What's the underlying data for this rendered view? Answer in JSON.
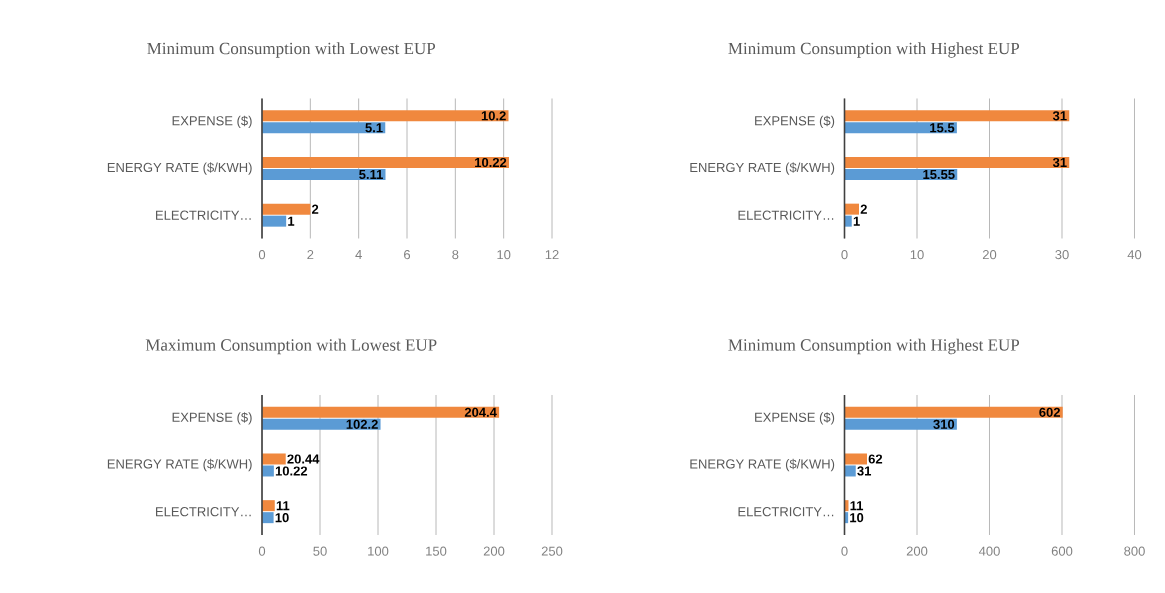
{
  "chart_data": [
    {
      "type": "bar",
      "orientation": "horizontal",
      "title": "Minimum Consumption  with Lowest EUP",
      "categories": [
        "EXPENSE ($)",
        "ENERGY RATE ($/KWH)",
        "ELECTRICITY…"
      ],
      "series": [
        {
          "color": "#f0883e",
          "values": [
            10.2,
            10.22,
            2
          ]
        },
        {
          "color": "#5b9bd5",
          "values": [
            5.1,
            5.11,
            1
          ]
        }
      ],
      "xlim": [
        0,
        12
      ],
      "xticks": [
        0,
        2,
        4,
        6,
        8,
        10,
        12
      ],
      "grid": "x",
      "data_labels": true
    },
    {
      "type": "bar",
      "orientation": "horizontal",
      "title": "Minimum Consumption  with Highest EUP",
      "categories": [
        "EXPENSE ($)",
        "ENERGY RATE ($/KWH)",
        "ELECTRICITY…"
      ],
      "series": [
        {
          "color": "#f0883e",
          "values": [
            31,
            31,
            2
          ]
        },
        {
          "color": "#5b9bd5",
          "values": [
            15.5,
            15.55,
            1
          ]
        }
      ],
      "xlim": [
        0,
        40
      ],
      "xticks": [
        0,
        10,
        20,
        30,
        40
      ],
      "grid": "x",
      "data_labels": true
    },
    {
      "type": "bar",
      "orientation": "horizontal",
      "title": "Maximum Consumption  with Lowest EUP",
      "categories": [
        "EXPENSE ($)",
        "ENERGY RATE ($/KWH)",
        "ELECTRICITY…"
      ],
      "series": [
        {
          "color": "#f0883e",
          "values": [
            204.4,
            20.44,
            11
          ]
        },
        {
          "color": "#5b9bd5",
          "values": [
            102.2,
            10.22,
            10
          ]
        }
      ],
      "xlim": [
        0,
        250
      ],
      "xticks": [
        0,
        50,
        100,
        150,
        200,
        250
      ],
      "grid": "x",
      "data_labels": true
    },
    {
      "type": "bar",
      "orientation": "horizontal",
      "title": "Minimum Consumption  with Highest EUP",
      "categories": [
        "EXPENSE ($)",
        "ENERGY RATE ($/KWH)",
        "ELECTRICITY…"
      ],
      "series": [
        {
          "color": "#f0883e",
          "values": [
            602,
            62,
            11
          ]
        },
        {
          "color": "#5b9bd5",
          "values": [
            310,
            31,
            10
          ]
        }
      ],
      "xlim": [
        0,
        800
      ],
      "xticks": [
        0,
        200,
        400,
        600,
        800
      ],
      "grid": "x",
      "data_labels": true
    }
  ]
}
